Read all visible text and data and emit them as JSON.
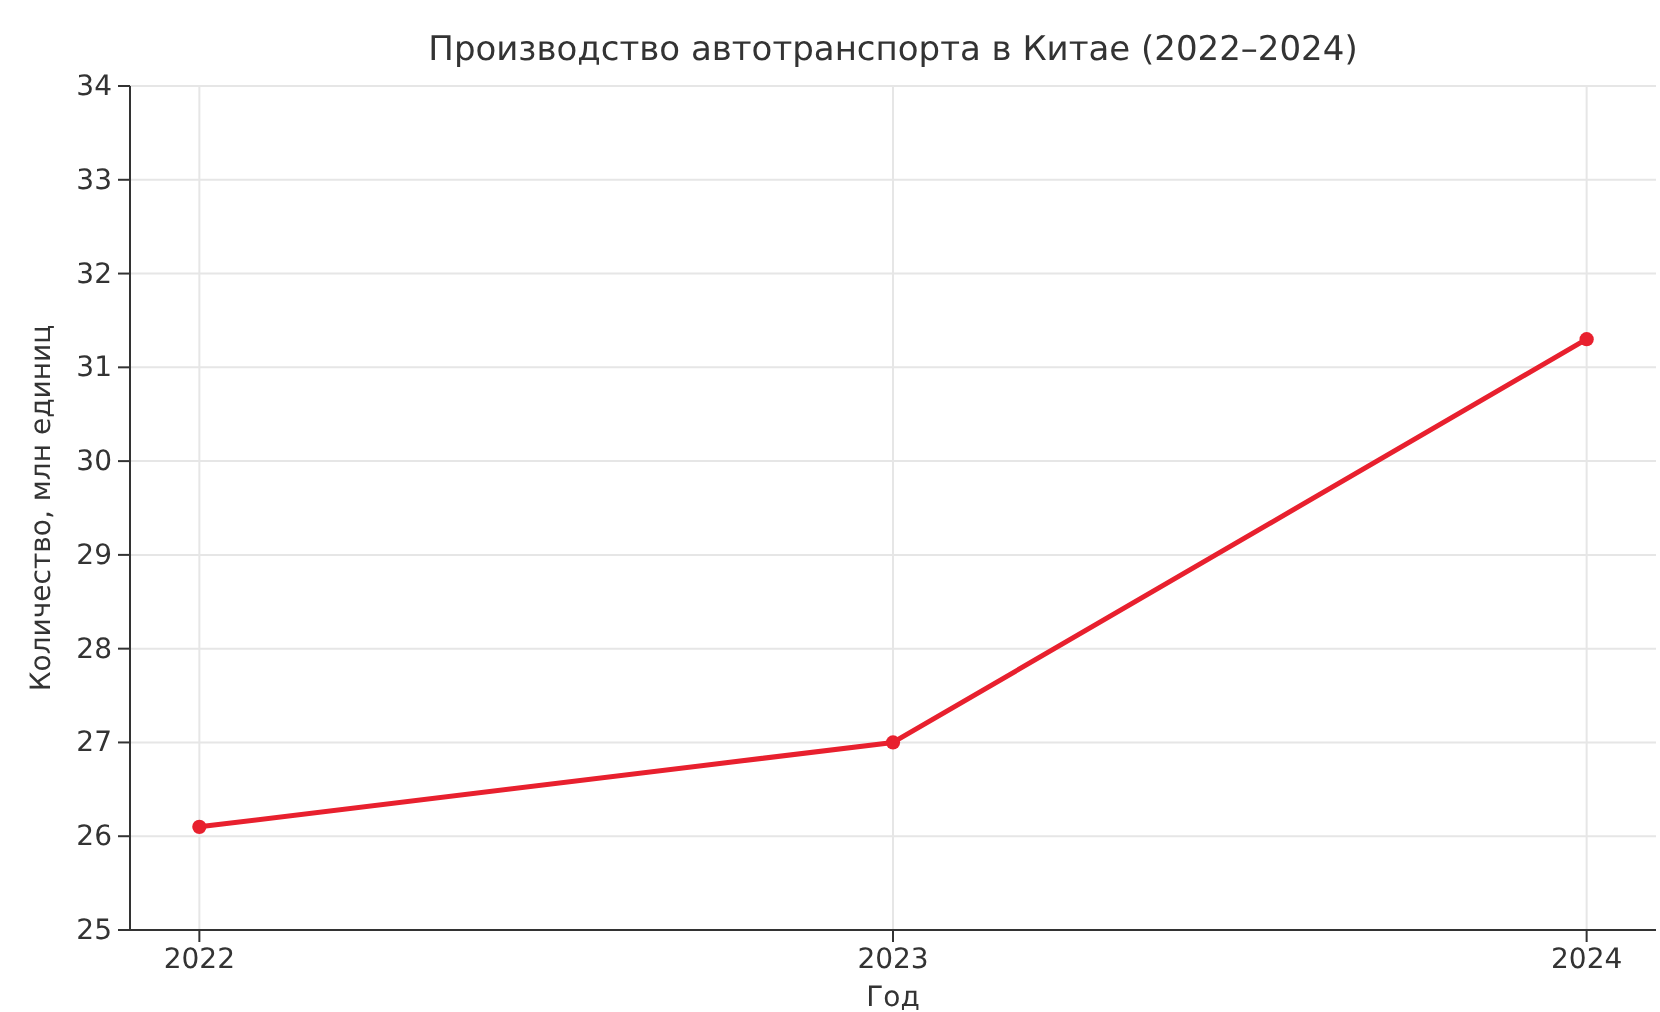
{
  "chart_data": {
    "type": "line",
    "title": "Производство автотранспорта в Китае (2022–2024)",
    "xlabel": "Год",
    "ylabel": "Количество, млн единиц",
    "x": [
      2022,
      2023,
      2024
    ],
    "series": [
      {
        "color": "#e8202e",
        "values": [
          26.1,
          27.0,
          31.3
        ]
      }
    ],
    "xlim": [
      2021.9,
      2024.1
    ],
    "xticks": [
      2022,
      2023,
      2024
    ],
    "ylim": [
      25,
      34
    ],
    "yticks": [
      25,
      26,
      27,
      28,
      29,
      30,
      31,
      32,
      33,
      34
    ],
    "grid": true,
    "marker": "circle",
    "line_style": "solid"
  }
}
